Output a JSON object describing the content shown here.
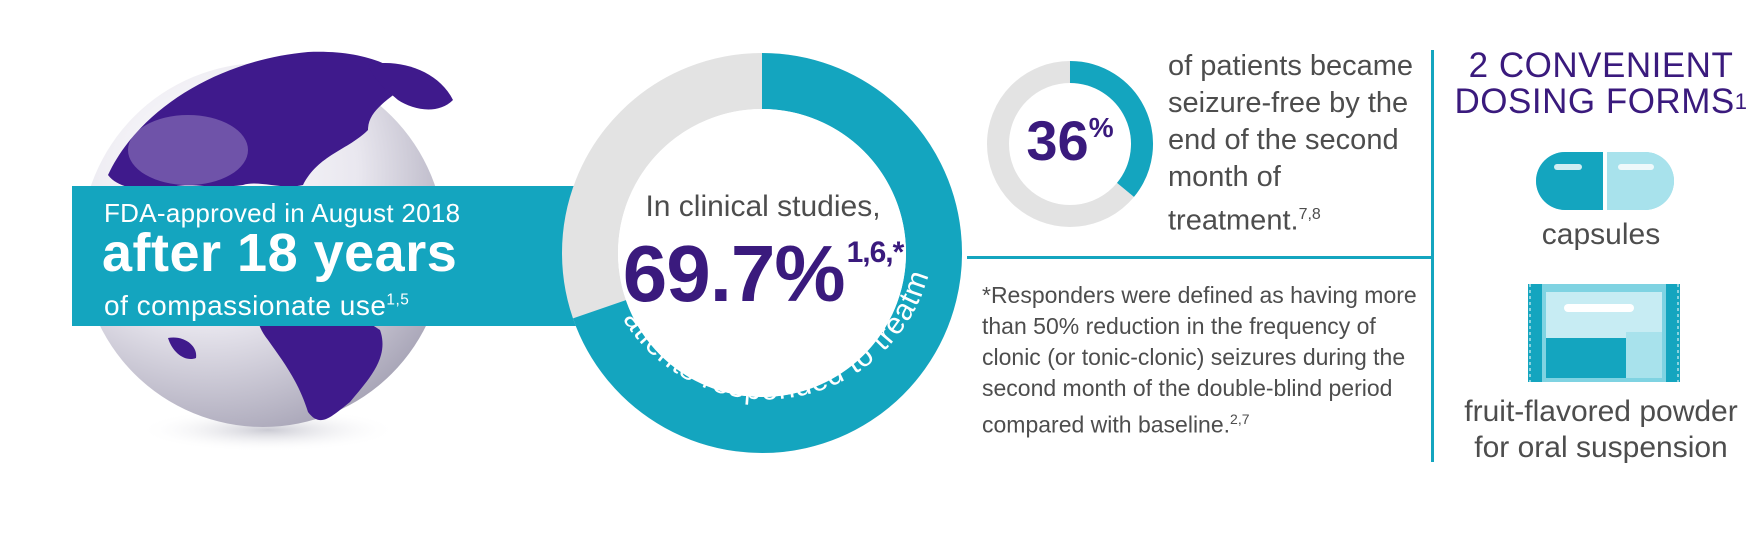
{
  "fda": {
    "line1": "FDA-approved in August 2018",
    "line2": "after 18 years",
    "line3": "of compassionate use",
    "line3_sup": "1,5"
  },
  "responders": {
    "intro": "In clinical studies,",
    "stat": "69.7%",
    "stat_sup": "1,6,*",
    "arc_label": "of patients responded to treatment",
    "fraction": 0.697
  },
  "seizure_free": {
    "stat": "36",
    "stat_unit": "%",
    "fraction": 0.36,
    "text": "of patients became seizure-free by the end of the second month of treatment.",
    "sup": "7,8"
  },
  "footnote": {
    "text": "*Responders were defined as having more than 50% reduction in the frequency of clonic (or tonic-clonic) seizures during the second month of the double-blind period compared with baseline.",
    "sup": "2,7"
  },
  "dosing": {
    "title": "2 CONVENIENT DOSING FORMS",
    "title_sup": "1",
    "capsule_label": "capsules",
    "powder_label": "fruit-flavored powder for oral suspension"
  },
  "colors": {
    "teal": "#14a5bf",
    "purple": "#3a1a7d",
    "ring_gray": "#e3e3e3",
    "text_gray": "#4d4d4d"
  }
}
